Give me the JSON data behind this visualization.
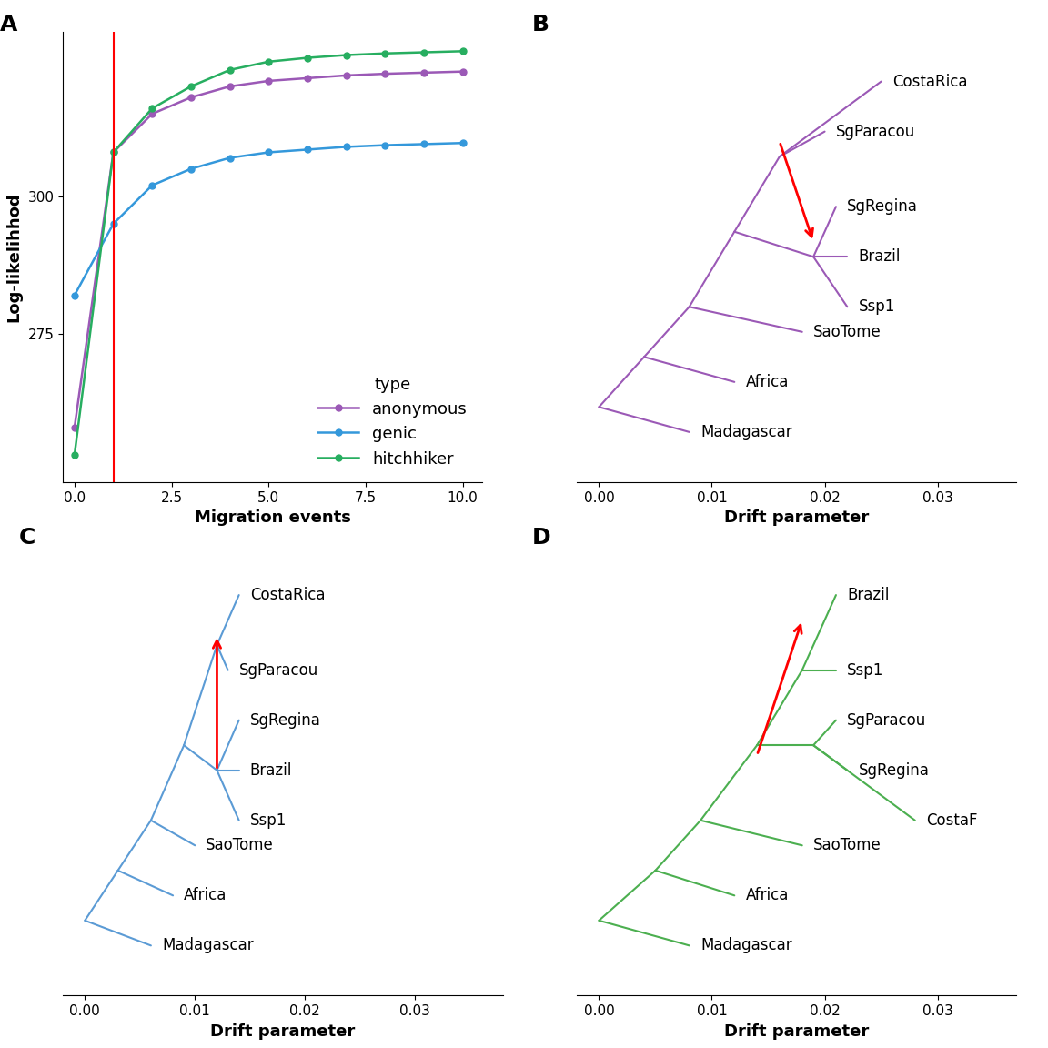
{
  "panel_A": {
    "migration_events": [
      0,
      1,
      2,
      3,
      4,
      5,
      6,
      7,
      8,
      9,
      10
    ],
    "anonymous": [
      258,
      308,
      315,
      318,
      320,
      321,
      321.5,
      322,
      322.3,
      322.5,
      322.7
    ],
    "genic": [
      282,
      295,
      302,
      305,
      307,
      308,
      308.5,
      309,
      309.3,
      309.5,
      309.7
    ],
    "hitchhiker": [
      253,
      308,
      316,
      320,
      323,
      324.5,
      325.2,
      325.7,
      326,
      326.2,
      326.4
    ],
    "colors": {
      "anonymous": "#9B59B6",
      "genic": "#3498DB",
      "hitchhiker": "#27AE60"
    },
    "red_vline_x": 1,
    "ylabel": "Log-likelihhod",
    "xlabel": "Migration events",
    "ylim": [
      248,
      330
    ],
    "yticks": [
      275,
      300
    ]
  },
  "colors": {
    "anonymous": "#9B59B6",
    "genic": "#5B9BD5",
    "hitchhiker": "#4CAF50"
  },
  "background_color": "#FFFFFF",
  "label_fontsize": 18,
  "axis_label_fontsize": 13,
  "tick_fontsize": 11,
  "legend_fontsize": 13
}
